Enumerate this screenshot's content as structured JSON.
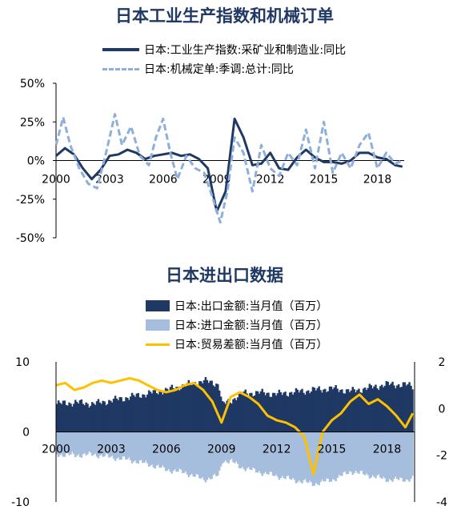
{
  "chart_data": [
    {
      "type": "line",
      "title": "日本工业生产指数和机械订单",
      "x_ticks": [
        "2000",
        "2003",
        "2006",
        "2009",
        "2012",
        "2015",
        "2018"
      ],
      "y_ticks": [
        "50%",
        "25%",
        "0%",
        "-25%",
        "-50%"
      ],
      "ylim": [
        -50,
        50
      ],
      "xlim": [
        2000,
        2019.5
      ],
      "legend_position": "top",
      "series": [
        {
          "name": "日本:工业生产指数:采矿业和制造业:同比",
          "color": "#1f3864",
          "style": "solid",
          "points": [
            [
              2000,
              3
            ],
            [
              2000.5,
              8
            ],
            [
              2001,
              4
            ],
            [
              2001.5,
              -5
            ],
            [
              2002,
              -12
            ],
            [
              2002.5,
              -6
            ],
            [
              2003,
              3
            ],
            [
              2003.5,
              4
            ],
            [
              2004,
              7
            ],
            [
              2004.5,
              5
            ],
            [
              2005,
              1
            ],
            [
              2005.5,
              3
            ],
            [
              2006,
              4
            ],
            [
              2006.5,
              5
            ],
            [
              2007,
              3
            ],
            [
              2007.5,
              4
            ],
            [
              2008,
              1
            ],
            [
              2008.5,
              -5
            ],
            [
              2009,
              -33
            ],
            [
              2009.5,
              -20
            ],
            [
              2010,
              27
            ],
            [
              2010.5,
              15
            ],
            [
              2011,
              -3
            ],
            [
              2011.5,
              -2
            ],
            [
              2012,
              5
            ],
            [
              2012.5,
              -5
            ],
            [
              2013,
              -6
            ],
            [
              2013.5,
              2
            ],
            [
              2014,
              7
            ],
            [
              2014.5,
              2
            ],
            [
              2015,
              -1
            ],
            [
              2015.5,
              -1
            ],
            [
              2016,
              -2
            ],
            [
              2016.5,
              0
            ],
            [
              2017,
              5
            ],
            [
              2017.5,
              5
            ],
            [
              2018,
              2
            ],
            [
              2018.5,
              1
            ],
            [
              2019,
              -3
            ],
            [
              2019.4,
              -4
            ]
          ]
        },
        {
          "name": "日本:机械定单:季调:总计:同比",
          "color": "#8eaedc",
          "style": "dashed",
          "points": [
            [
              2000,
              10
            ],
            [
              2000.4,
              28
            ],
            [
              2000.8,
              10
            ],
            [
              2001.3,
              -5
            ],
            [
              2001.8,
              -15
            ],
            [
              2002.3,
              -18
            ],
            [
              2002.8,
              5
            ],
            [
              2003.3,
              30
            ],
            [
              2003.7,
              10
            ],
            [
              2004.2,
              22
            ],
            [
              2004.7,
              3
            ],
            [
              2005.2,
              -3
            ],
            [
              2005.6,
              15
            ],
            [
              2006,
              27
            ],
            [
              2006.4,
              5
            ],
            [
              2006.8,
              -12
            ],
            [
              2007.3,
              3
            ],
            [
              2007.8,
              -5
            ],
            [
              2008.3,
              -8
            ],
            [
              2008.8,
              -25
            ],
            [
              2009.2,
              -40
            ],
            [
              2009.6,
              -20
            ],
            [
              2010,
              15
            ],
            [
              2010.5,
              5
            ],
            [
              2011,
              -20
            ],
            [
              2011.5,
              10
            ],
            [
              2012,
              -5
            ],
            [
              2012.5,
              -10
            ],
            [
              2013,
              5
            ],
            [
              2013.5,
              -3
            ],
            [
              2014,
              20
            ],
            [
              2014.5,
              -5
            ],
            [
              2015,
              25
            ],
            [
              2015.5,
              -8
            ],
            [
              2016,
              5
            ],
            [
              2016.5,
              -5
            ],
            [
              2017,
              10
            ],
            [
              2017.5,
              18
            ],
            [
              2018,
              -5
            ],
            [
              2018.5,
              5
            ],
            [
              2019,
              -2
            ],
            [
              2019.4,
              0
            ]
          ]
        }
      ]
    },
    {
      "type": "bar",
      "title": "日本进出口数据",
      "x_ticks": [
        "2000",
        "2003",
        "2006",
        "2009",
        "2012",
        "2015",
        "2018"
      ],
      "y_left_ticks": [
        "10",
        "5",
        "0",
        "-5",
        "-10"
      ],
      "y_right_ticks": [
        "2",
        "0",
        "-2",
        "-4"
      ],
      "ylim_left": [
        -10,
        10
      ],
      "ylim_right": [
        -4,
        2
      ],
      "xlim": [
        2000,
        2019.5
      ],
      "legend_position": "top",
      "series": [
        {
          "name": "日本:出口金额:当月值（百万）",
          "color": "#1f3864",
          "axis": "left",
          "kind": "area",
          "points": [
            [
              2000,
              4
            ],
            [
              2001,
              4.2
            ],
            [
              2002,
              4
            ],
            [
              2003,
              4.5
            ],
            [
              2004,
              5
            ],
            [
              2005,
              5.5
            ],
            [
              2006,
              6
            ],
            [
              2007,
              6.7
            ],
            [
              2008,
              7.3
            ],
            [
              2008.8,
              6.8
            ],
            [
              2009,
              3.9
            ],
            [
              2009.5,
              4.5
            ],
            [
              2010,
              5.5
            ],
            [
              2011,
              5.6
            ],
            [
              2012,
              5.4
            ],
            [
              2013,
              5.7
            ],
            [
              2014,
              6
            ],
            [
              2015,
              6.2
            ],
            [
              2016,
              5.8
            ],
            [
              2017,
              6.3
            ],
            [
              2018,
              6.8
            ],
            [
              2019,
              6.7
            ],
            [
              2019.4,
              6.5
            ]
          ]
        },
        {
          "name": "日本:进口金额:当月值（百万）",
          "color": "#a6bedd",
          "axis": "left",
          "kind": "area",
          "points": [
            [
              2000,
              -3.2
            ],
            [
              2001,
              -3.3
            ],
            [
              2002,
              -3.2
            ],
            [
              2003,
              -3.6
            ],
            [
              2004,
              -4
            ],
            [
              2005,
              -4.6
            ],
            [
              2006,
              -5.4
            ],
            [
              2007,
              -5.8
            ],
            [
              2008,
              -6.8
            ],
            [
              2008.8,
              -6.2
            ],
            [
              2009,
              -4.1
            ],
            [
              2009.5,
              -4.2
            ],
            [
              2010,
              -5
            ],
            [
              2011,
              -5.7
            ],
            [
              2012,
              -6.3
            ],
            [
              2013,
              -6.9
            ],
            [
              2014,
              -7.4
            ],
            [
              2015,
              -6.8
            ],
            [
              2016,
              -5.6
            ],
            [
              2017,
              -6.2
            ],
            [
              2018,
              -6.8
            ],
            [
              2019,
              -6.8
            ],
            [
              2019.4,
              -6.6
            ]
          ]
        },
        {
          "name": "日本:贸易差额:当月值（百万）",
          "color": "#ffc000",
          "axis": "right",
          "kind": "line",
          "points": [
            [
              2000,
              1
            ],
            [
              2000.5,
              1.1
            ],
            [
              2001,
              0.8
            ],
            [
              2001.5,
              0.9
            ],
            [
              2002,
              1.1
            ],
            [
              2002.5,
              1.2
            ],
            [
              2003,
              1.1
            ],
            [
              2003.5,
              1.2
            ],
            [
              2004,
              1.3
            ],
            [
              2004.5,
              1.2
            ],
            [
              2005,
              1
            ],
            [
              2005.5,
              0.8
            ],
            [
              2006,
              0.7
            ],
            [
              2006.5,
              0.8
            ],
            [
              2007,
              1
            ],
            [
              2007.5,
              1.1
            ],
            [
              2008,
              0.8
            ],
            [
              2008.5,
              0.3
            ],
            [
              2009,
              -0.6
            ],
            [
              2009.5,
              0.5
            ],
            [
              2010,
              0.7
            ],
            [
              2010.5,
              0.5
            ],
            [
              2011,
              0.2
            ],
            [
              2011.5,
              -0.3
            ],
            [
              2012,
              -0.5
            ],
            [
              2012.5,
              -0.6
            ],
            [
              2013,
              -0.8
            ],
            [
              2013.5,
              -1.2
            ],
            [
              2014,
              -2.8
            ],
            [
              2014.5,
              -1
            ],
            [
              2015,
              -0.5
            ],
            [
              2015.5,
              -0.2
            ],
            [
              2016,
              0.3
            ],
            [
              2016.5,
              0.6
            ],
            [
              2017,
              0.2
            ],
            [
              2017.5,
              0.4
            ],
            [
              2018,
              0.1
            ],
            [
              2018.5,
              -0.3
            ],
            [
              2019,
              -0.8
            ],
            [
              2019.4,
              -0.2
            ]
          ]
        }
      ]
    }
  ]
}
